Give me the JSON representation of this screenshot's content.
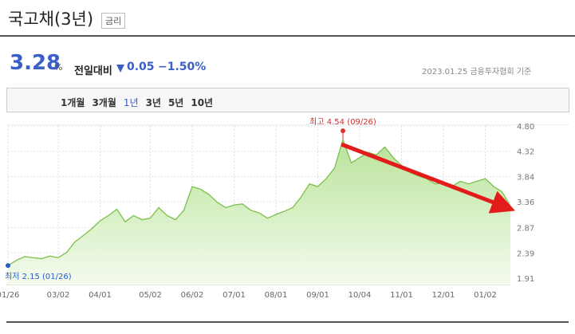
{
  "header": {
    "title": "국고채(3년)",
    "badge": "금리",
    "price": "3.28",
    "unit": "%",
    "compare_label": "전일대비",
    "change": "0.05",
    "change_rate": "−1.50%",
    "date": "2023.01.25",
    "source": "금융투자협회 기준"
  },
  "tabs": [
    "1개월",
    "3개월",
    "1년",
    "3년",
    "5년",
    "10년"
  ],
  "selected_tab": 2,
  "chart_data": {
    "type": "area",
    "categories": [
      "01/26",
      null,
      null,
      null,
      null,
      null,
      "03/02",
      null,
      null,
      null,
      null,
      "04/01",
      null,
      null,
      null,
      null,
      null,
      "05/02",
      null,
      null,
      null,
      null,
      "06/02",
      null,
      null,
      null,
      null,
      "07/01",
      null,
      null,
      null,
      null,
      "08/01",
      null,
      null,
      null,
      null,
      "09/01",
      null,
      null,
      null,
      null,
      "10/04",
      null,
      null,
      null,
      null,
      "11/01",
      null,
      null,
      null,
      null,
      "12/01",
      null,
      null,
      null,
      null,
      "01/02",
      null,
      null,
      null
    ],
    "values": [
      2.15,
      2.25,
      2.32,
      2.3,
      2.28,
      2.33,
      2.3,
      2.4,
      2.6,
      2.72,
      2.85,
      3.0,
      3.1,
      3.22,
      2.98,
      3.1,
      3.02,
      3.05,
      3.25,
      3.1,
      3.02,
      3.2,
      3.65,
      3.6,
      3.5,
      3.35,
      3.25,
      3.3,
      3.32,
      3.2,
      3.15,
      3.05,
      3.12,
      3.18,
      3.25,
      3.45,
      3.7,
      3.65,
      3.8,
      4.0,
      4.54,
      4.1,
      4.2,
      4.3,
      4.25,
      4.4,
      4.2,
      4.05,
      3.92,
      3.85,
      3.8,
      3.7,
      3.72,
      3.65,
      3.75,
      3.7,
      3.75,
      3.8,
      3.65,
      3.55,
      3.28
    ],
    "color": "#7cc04b",
    "ylim": [
      1.91,
      4.8
    ],
    "yticks": [
      {
        "value": 4.8,
        "label": "4.80"
      },
      4.32,
      3.84,
      3.36,
      2.87,
      2.39,
      1.91
    ],
    "grid": true,
    "annotations": {
      "max": "최고 4.54 (09/26)",
      "min": "최저 2.15 (01/26)"
    }
  }
}
